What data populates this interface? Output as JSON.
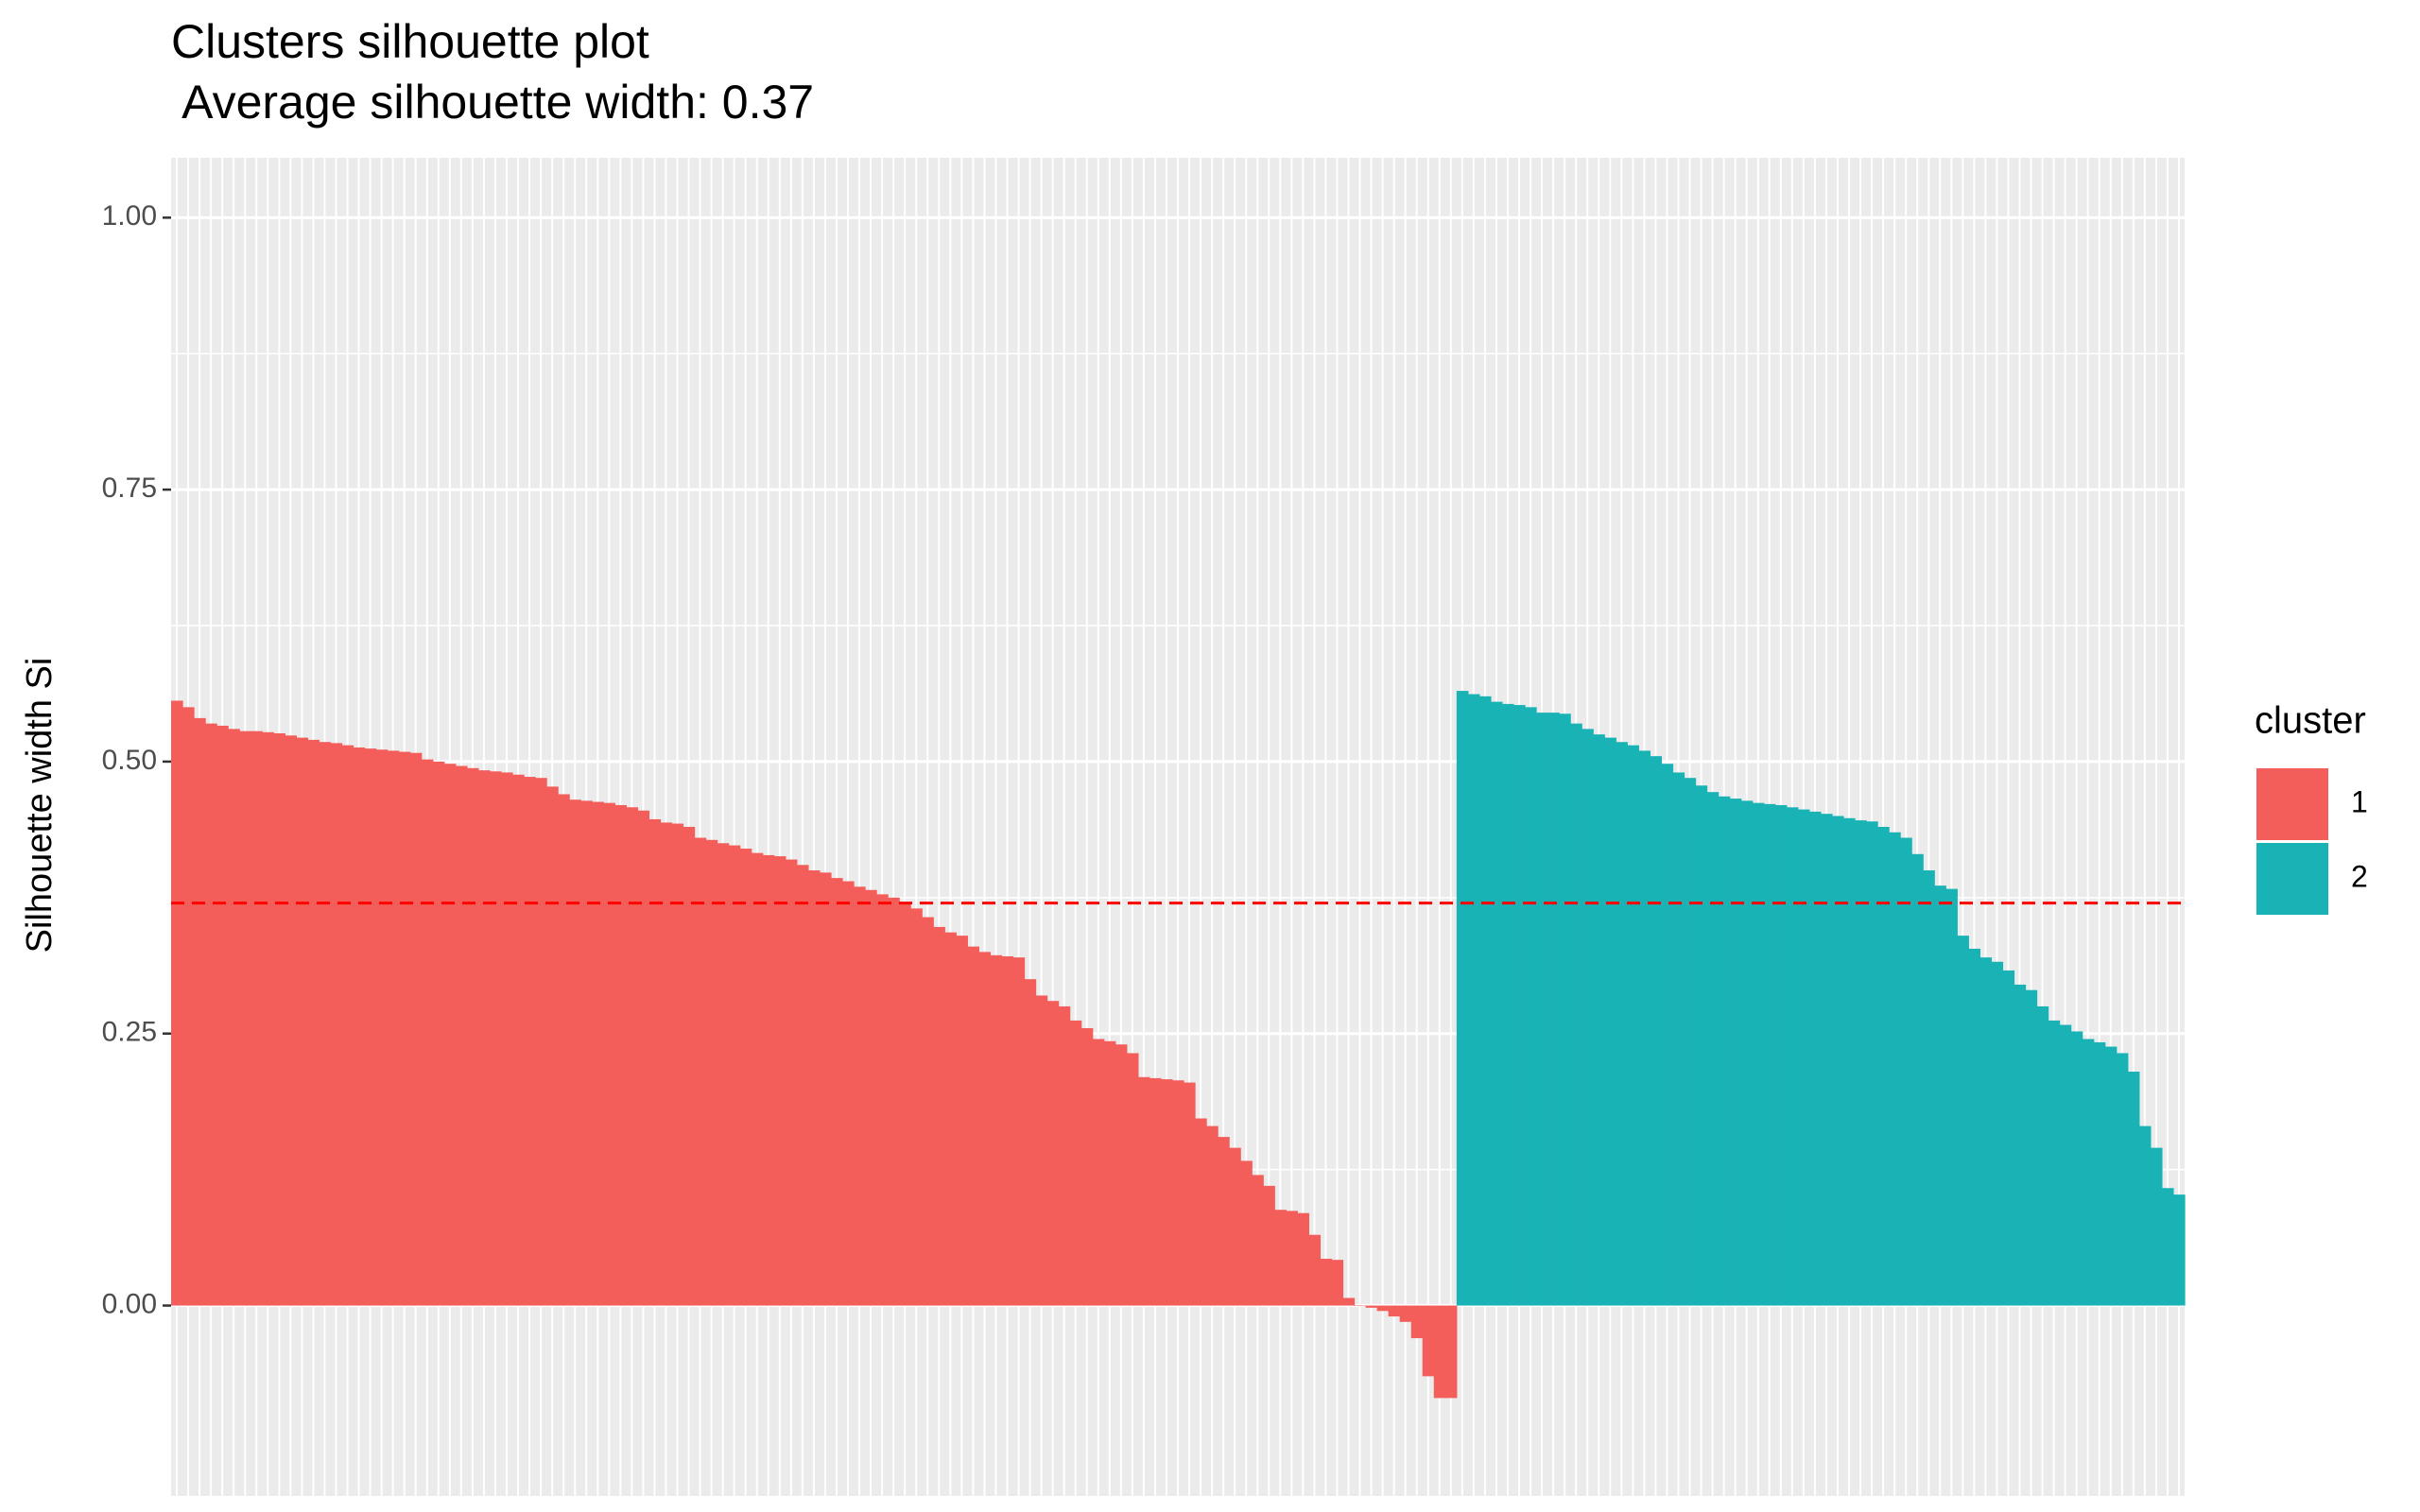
{
  "chart_data": {
    "type": "silhouette-bar",
    "title": "Clusters silhouette plot",
    "subtitle": " Average silhouette width: 0.37",
    "ylabel": "Silhouette width Si",
    "legend_title": "cluster",
    "legend_position": "right",
    "ylim": [
      -0.175,
      1.055
    ],
    "yticks": [
      {
        "value": 0,
        "label": "0.00"
      },
      {
        "value": 0.25,
        "label": "0.25"
      },
      {
        "value": 0.5,
        "label": "0.50"
      },
      {
        "value": 0.75,
        "label": "0.75"
      },
      {
        "value": 1,
        "label": "1.00"
      }
    ],
    "grid": true,
    "reference_line": {
      "value": 0.37,
      "color": "#ff0000",
      "style": "dashed"
    },
    "series": [
      {
        "name": "1",
        "color": "#f35e5a",
        "values": [
          0.556,
          0.55,
          0.54,
          0.535,
          0.533,
          0.53,
          0.528,
          0.528,
          0.527,
          0.526,
          0.524,
          0.522,
          0.52,
          0.518,
          0.517,
          0.515,
          0.513,
          0.512,
          0.511,
          0.51,
          0.509,
          0.508,
          0.502,
          0.5,
          0.498,
          0.496,
          0.494,
          0.492,
          0.491,
          0.49,
          0.488,
          0.486,
          0.485,
          0.477,
          0.47,
          0.465,
          0.464,
          0.463,
          0.462,
          0.46,
          0.458,
          0.455,
          0.447,
          0.444,
          0.443,
          0.44,
          0.43,
          0.428,
          0.425,
          0.423,
          0.42,
          0.416,
          0.414,
          0.413,
          0.41,
          0.405,
          0.4,
          0.398,
          0.393,
          0.39,
          0.385,
          0.382,
          0.378,
          0.375,
          0.37,
          0.365,
          0.357,
          0.348,
          0.343,
          0.34,
          0.33,
          0.325,
          0.322,
          0.321,
          0.32,
          0.3,
          0.285,
          0.28,
          0.275,
          0.262,
          0.255,
          0.245,
          0.243,
          0.24,
          0.232,
          0.21,
          0.209,
          0.208,
          0.207,
          0.205,
          0.172,
          0.165,
          0.155,
          0.145,
          0.133,
          0.12,
          0.11,
          0.088,
          0.087,
          0.085,
          0.065,
          0.043,
          0.042,
          0.007,
          0.0,
          -0.002,
          -0.005,
          -0.01,
          -0.015,
          -0.03,
          -0.065,
          -0.085,
          -0.085
        ]
      },
      {
        "name": "2",
        "color": "#19b3b6",
        "values": [
          0.565,
          0.562,
          0.56,
          0.555,
          0.553,
          0.552,
          0.55,
          0.545,
          0.545,
          0.544,
          0.535,
          0.53,
          0.525,
          0.522,
          0.518,
          0.515,
          0.51,
          0.505,
          0.498,
          0.49,
          0.485,
          0.478,
          0.472,
          0.468,
          0.466,
          0.464,
          0.462,
          0.461,
          0.46,
          0.458,
          0.456,
          0.454,
          0.452,
          0.45,
          0.448,
          0.446,
          0.445,
          0.44,
          0.435,
          0.43,
          0.415,
          0.4,
          0.386,
          0.383,
          0.34,
          0.328,
          0.32,
          0.316,
          0.308,
          0.295,
          0.29,
          0.275,
          0.262,
          0.258,
          0.252,
          0.245,
          0.242,
          0.238,
          0.232,
          0.215,
          0.165,
          0.145,
          0.108,
          0.102
        ]
      }
    ]
  }
}
